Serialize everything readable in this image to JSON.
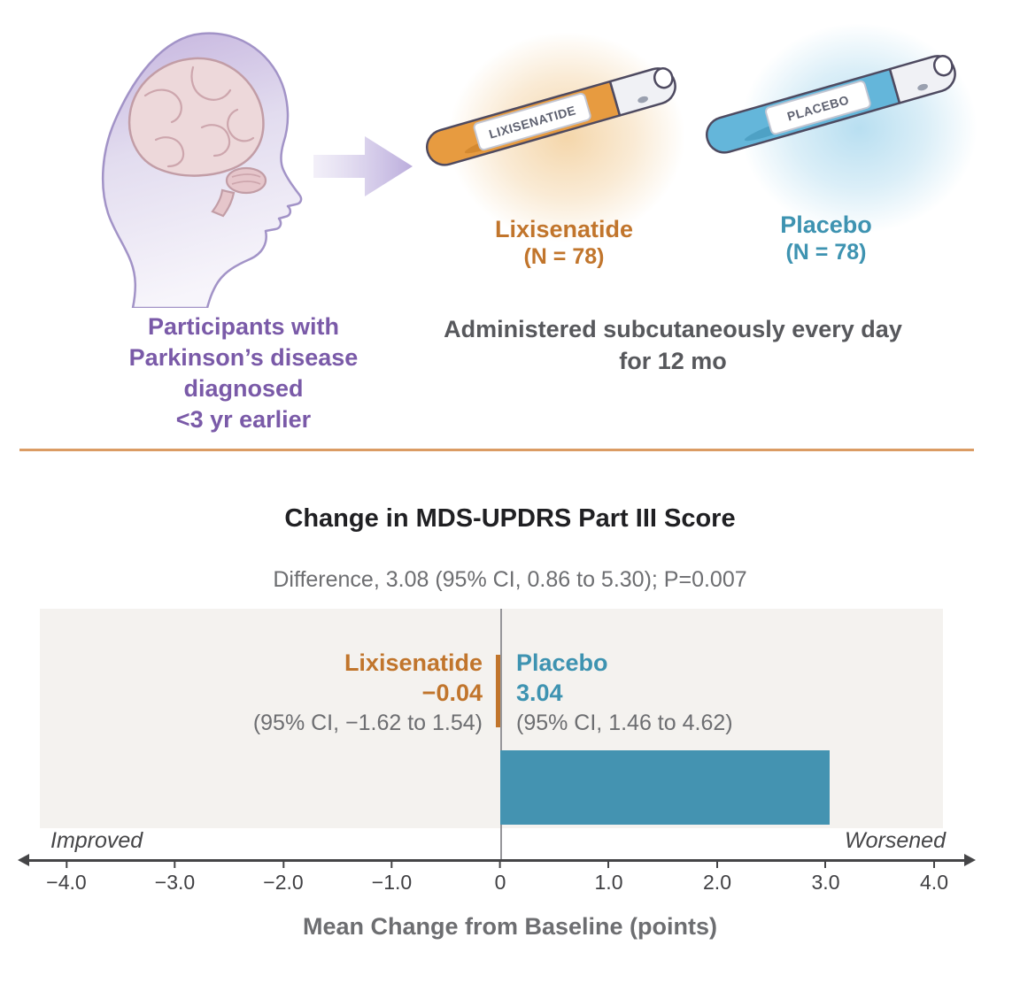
{
  "intervention": {
    "participants_caption": [
      "Participants with",
      "Parkinson’s disease diagnosed",
      "<3 yr earlier"
    ],
    "arms": [
      {
        "name": "Lixisenatide",
        "n_label": "(N = 78)",
        "pen_text": "LIXISENATIDE"
      },
      {
        "name": "Placebo",
        "n_label": "(N = 78)",
        "pen_text": "PLACEBO"
      }
    ],
    "admin_caption": [
      "Administered subcutaneously every day",
      "for 12 mo"
    ]
  },
  "chart": {
    "title": "Change in MDS-UPDRS Part III Score",
    "subtitle": "Difference, 3.08 (95% CI, 0.86 to 5.30); P=0.007",
    "groups": [
      {
        "label": "Lixisenatide",
        "value_label": "−0.04",
        "ci_label": "(95% CI, −1.62 to 1.54)"
      },
      {
        "label": "Placebo",
        "value_label": "3.04",
        "ci_label": "(95% CI, 1.46 to 4.62)"
      }
    ],
    "improved_label": "Improved",
    "worsened_label": "Worsened",
    "xlabel": "Mean Change from Baseline (points)",
    "tick_labels": [
      "−4.0",
      "−3.0",
      "−2.0",
      "−1.0",
      "0",
      "1.0",
      "2.0",
      "3.0",
      "4.0"
    ]
  },
  "chart_data": {
    "type": "bar",
    "orientation": "horizontal",
    "title": "Change in MDS-UPDRS Part III Score",
    "subtitle": "Difference, 3.08 (95% CI, 0.86 to 5.30); P=0.007",
    "categories": [
      "Lixisenatide",
      "Placebo"
    ],
    "values": [
      -0.04,
      3.04
    ],
    "ci95": [
      [
        -1.62,
        1.54
      ],
      [
        1.46,
        4.62
      ]
    ],
    "difference": {
      "value": 3.08,
      "ci95": [
        0.86,
        5.3
      ],
      "p": 0.007
    },
    "xlabel": "Mean Change from Baseline (points)",
    "xlim": [
      -4,
      4
    ],
    "x_ticks": [
      -4,
      -3,
      -2,
      -1,
      0,
      1,
      2,
      3,
      4
    ],
    "direction_annotations": {
      "left": "Improved",
      "right": "Worsened"
    },
    "bar_colors": [
      "#c1752c",
      "#4493b1"
    ]
  },
  "colors": {
    "lixisenatide_orange": "#c1752c",
    "placebo_blue": "#3e93b1",
    "purple_text": "#7a5aa8",
    "gray_text": "#6d6e71",
    "divider_orange": "#db9c64",
    "plot_background": "#f4f2ef"
  }
}
